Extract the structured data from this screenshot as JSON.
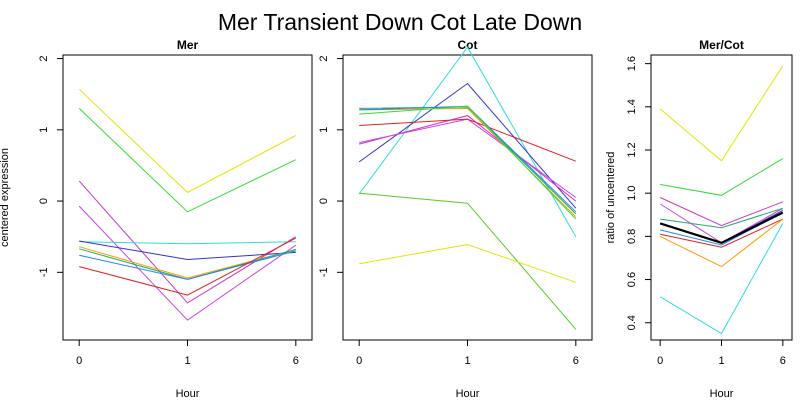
{
  "figure_title": "Mer Transient Down Cot Late Down",
  "chart_data": [
    {
      "type": "line",
      "title": "Mer",
      "xlabel": "Hour",
      "ylabel": "centered expression",
      "categories": [
        "0",
        "1",
        "6"
      ],
      "ylim": [
        -1.95,
        2.05
      ],
      "yticks": [
        -1,
        0,
        1,
        2
      ],
      "yticks_labels": [
        "-1",
        "0",
        "1",
        "2"
      ],
      "series": [
        {
          "color": "#e5e500",
          "values": [
            1.57,
            0.12,
            0.92
          ]
        },
        {
          "color": "#33dd33",
          "values": [
            1.3,
            -0.15,
            0.58
          ]
        },
        {
          "color": "#cc33cc",
          "values": [
            0.28,
            -1.43,
            -0.5
          ]
        },
        {
          "color": "#cc44dd",
          "values": [
            -0.07,
            -1.67,
            -0.62
          ]
        },
        {
          "color": "#33dddd",
          "values": [
            -0.57,
            -0.6,
            -0.57
          ]
        },
        {
          "color": "#3333cc",
          "values": [
            -0.56,
            -0.82,
            -0.72
          ]
        },
        {
          "color": "#ff9900",
          "values": [
            -0.64,
            -1.08,
            -0.68
          ]
        },
        {
          "color": "#22aa66",
          "values": [
            -0.67,
            -1.1,
            -0.68
          ]
        },
        {
          "color": "#2288ee",
          "values": [
            -0.76,
            -1.1,
            -0.7
          ]
        },
        {
          "color": "#dd2222",
          "values": [
            -0.92,
            -1.32,
            -0.52
          ]
        }
      ]
    },
    {
      "type": "line",
      "title": "Cot",
      "xlabel": "Hour",
      "ylabel": "",
      "categories": [
        "0",
        "1",
        "6"
      ],
      "ylim": [
        -1.95,
        2.05
      ],
      "yticks": [
        -1,
        0,
        1,
        2
      ],
      "yticks_labels": [
        "-1",
        "0",
        "1",
        "2"
      ],
      "series": [
        {
          "color": "#33dddd",
          "values": [
            0.1,
            2.16,
            -0.5
          ]
        },
        {
          "color": "#3333cc",
          "values": [
            0.55,
            1.65,
            -0.1
          ]
        },
        {
          "color": "#cc33cc",
          "values": [
            0.8,
            1.2,
            0.0
          ]
        },
        {
          "color": "#cc44dd",
          "values": [
            0.82,
            1.15,
            0.05
          ]
        },
        {
          "color": "#dd2222",
          "values": [
            1.06,
            1.15,
            0.56
          ]
        },
        {
          "color": "#ff9900",
          "values": [
            1.28,
            1.3,
            -0.22
          ]
        },
        {
          "color": "#22aa66",
          "values": [
            1.3,
            1.32,
            -0.18
          ]
        },
        {
          "color": "#2288ee",
          "values": [
            1.28,
            1.33,
            -0.15
          ]
        },
        {
          "color": "#33dd33",
          "values": [
            1.22,
            1.33,
            -0.25
          ]
        },
        {
          "color": "#55cc22",
          "values": [
            0.11,
            -0.03,
            -1.8
          ]
        },
        {
          "color": "#e5e500",
          "values": [
            -0.88,
            -0.61,
            -1.14
          ]
        }
      ]
    },
    {
      "type": "line",
      "title": "Mer/Cot",
      "xlabel": "Hour",
      "ylabel": "ratio of uncentered",
      "categories": [
        "0",
        "1",
        "6"
      ],
      "ylim": [
        0.32,
        1.64
      ],
      "yticks": [
        0.4,
        0.6,
        0.8,
        1.0,
        1.2,
        1.4,
        1.6
      ],
      "yticks_labels": [
        "0.4",
        "0.6",
        "0.8",
        "1.0",
        "1.2",
        "1.4",
        "1.6"
      ],
      "series": [
        {
          "color": "#e5e500",
          "values": [
            1.39,
            1.15,
            1.59
          ]
        },
        {
          "color": "#33dd33",
          "values": [
            1.04,
            0.99,
            1.16
          ]
        },
        {
          "color": "#cc33cc",
          "values": [
            0.98,
            0.85,
            0.96
          ]
        },
        {
          "color": "#cc44dd",
          "values": [
            0.95,
            0.77,
            0.93
          ]
        },
        {
          "color": "#22aa66",
          "values": [
            0.88,
            0.84,
            0.93
          ]
        },
        {
          "color": "#3333cc",
          "values": [
            0.86,
            0.77,
            0.92
          ]
        },
        {
          "color": "#2288ee",
          "values": [
            0.83,
            0.76,
            0.91
          ]
        },
        {
          "color": "#dd2222",
          "values": [
            0.81,
            0.75,
            0.88
          ]
        },
        {
          "color": "#ff9900",
          "values": [
            0.8,
            0.66,
            0.88
          ]
        },
        {
          "color": "#33dddd",
          "values": [
            0.52,
            0.35,
            0.86
          ]
        },
        {
          "color": "#000000",
          "values": [
            0.86,
            0.77,
            0.91
          ],
          "bold": true
        }
      ]
    }
  ]
}
